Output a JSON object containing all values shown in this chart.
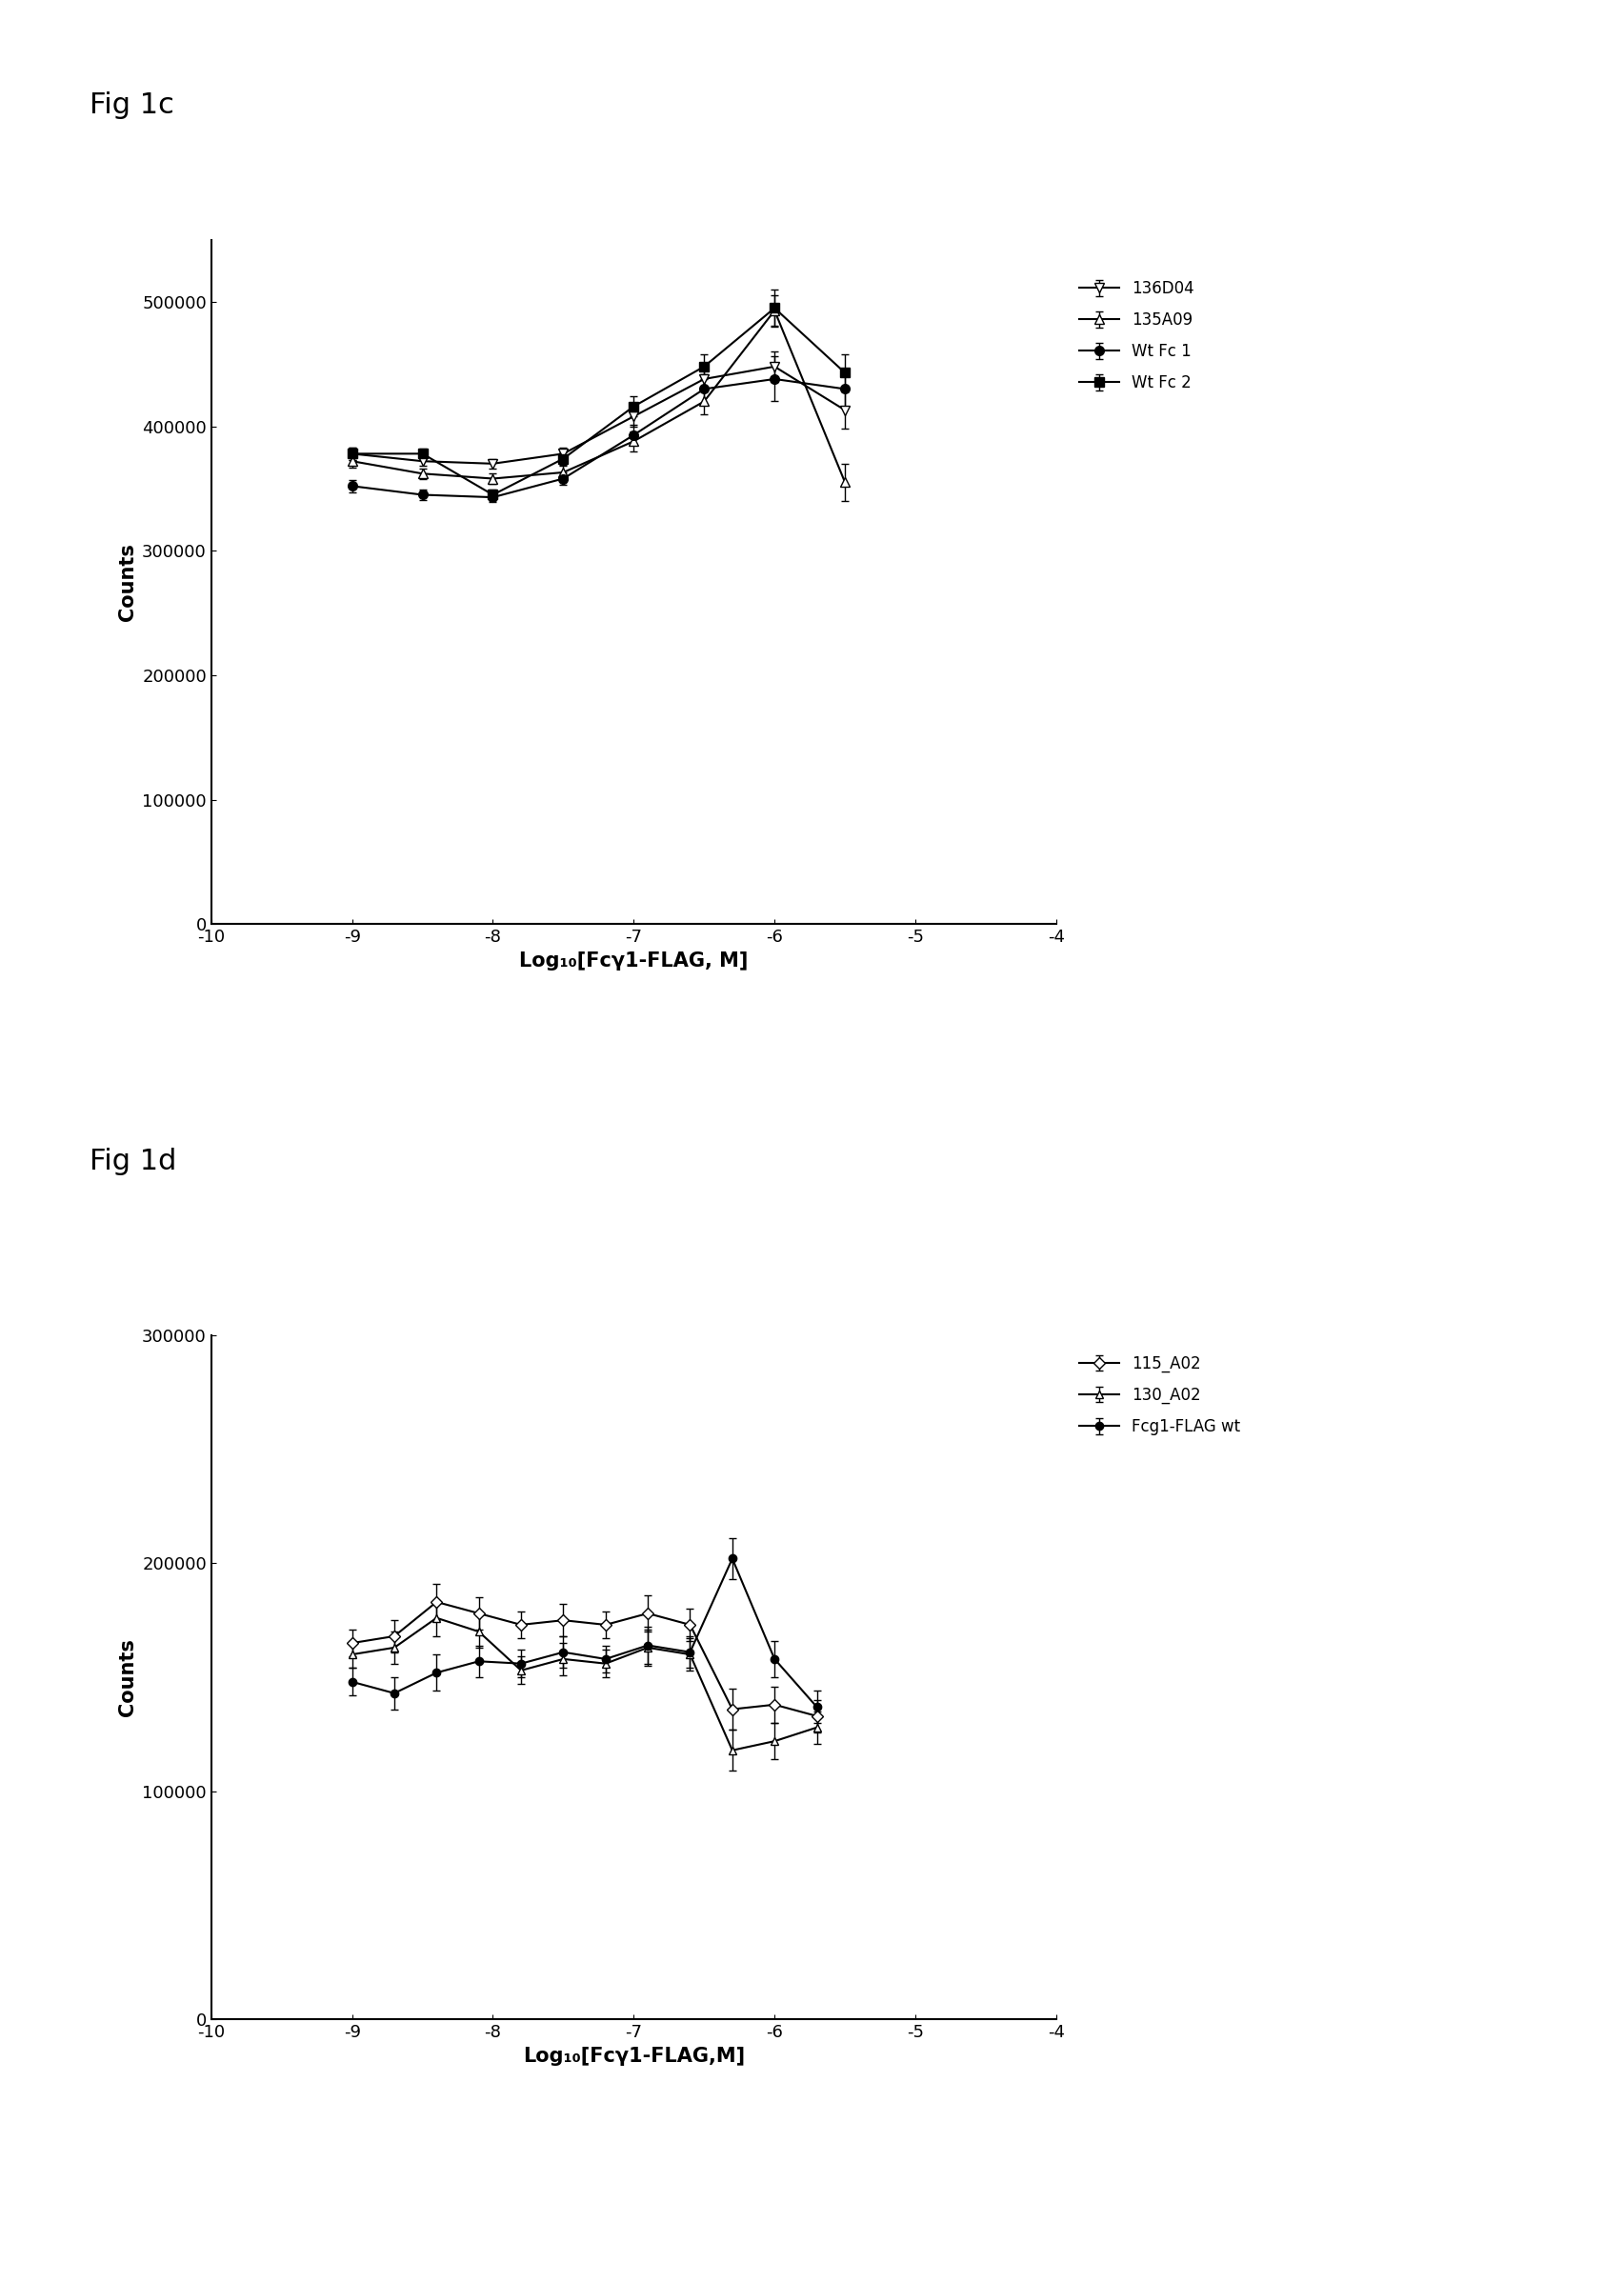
{
  "fig1c": {
    "title": "Fig 1c",
    "xlabel": "Log₁₀[Fcγ1-FLAG, M]",
    "ylabel": "Counts",
    "xlim": [
      -10,
      -4
    ],
    "ylim": [
      0,
      550000
    ],
    "xticks": [
      -10,
      -9,
      -8,
      -7,
      -6,
      -5,
      -4
    ],
    "yticks": [
      0,
      100000,
      200000,
      300000,
      400000,
      500000
    ],
    "series": [
      {
        "label": "136D04",
        "marker": "v",
        "markersize": 7,
        "color": "#000000",
        "fillstyle": "none",
        "x": [
          -9.0,
          -8.5,
          -8.0,
          -7.5,
          -7.0,
          -6.5,
          -6.0,
          -5.5
        ],
        "y": [
          378000,
          372000,
          370000,
          378000,
          408000,
          438000,
          448000,
          413000
        ],
        "yerr": [
          5000,
          4000,
          4000,
          5000,
          8000,
          10000,
          12000,
          15000
        ]
      },
      {
        "label": "135A09",
        "marker": "^",
        "markersize": 7,
        "color": "#000000",
        "fillstyle": "none",
        "x": [
          -9.0,
          -8.5,
          -8.0,
          -7.5,
          -7.0,
          -6.5,
          -6.0,
          -5.5
        ],
        "y": [
          372000,
          362000,
          358000,
          363000,
          388000,
          420000,
          493000,
          355000
        ],
        "yerr": [
          5000,
          4000,
          4000,
          5000,
          8000,
          10000,
          12000,
          15000
        ]
      },
      {
        "label": "Wt Fc 1",
        "marker": "o",
        "markersize": 7,
        "color": "#000000",
        "fillstyle": "full",
        "x": [
          -9.0,
          -8.5,
          -8.0,
          -7.5,
          -7.0,
          -6.5,
          -6.0,
          -5.5
        ],
        "y": [
          352000,
          345000,
          343000,
          358000,
          393000,
          430000,
          438000,
          430000
        ],
        "yerr": [
          5000,
          4000,
          4000,
          5000,
          8000,
          12000,
          18000,
          15000
        ]
      },
      {
        "label": "Wt Fc 2",
        "marker": "s",
        "markersize": 7,
        "color": "#000000",
        "fillstyle": "full",
        "x": [
          -9.0,
          -8.5,
          -8.0,
          -7.5,
          -7.0,
          -6.5,
          -6.0,
          -5.5
        ],
        "y": [
          378000,
          378000,
          345000,
          374000,
          416000,
          448000,
          495000,
          443000
        ],
        "yerr": [
          5000,
          4000,
          4000,
          5000,
          8000,
          10000,
          15000,
          15000
        ]
      }
    ]
  },
  "fig1d": {
    "title": "Fig 1d",
    "xlabel": "Log₁₀[Fcγ1-FLAG,M]",
    "ylabel": "Counts",
    "xlim": [
      -10,
      -4
    ],
    "ylim": [
      0,
      300000
    ],
    "xticks": [
      -10,
      -9,
      -8,
      -7,
      -6,
      -5,
      -4
    ],
    "yticks": [
      0,
      100000,
      200000,
      300000
    ],
    "series": [
      {
        "label": "115_A02",
        "marker": "D",
        "markersize": 6,
        "color": "#000000",
        "fillstyle": "none",
        "x": [
          -9.0,
          -8.7,
          -8.4,
          -8.1,
          -7.8,
          -7.5,
          -7.2,
          -6.9,
          -6.6,
          -6.3,
          -6.0,
          -5.7
        ],
        "y": [
          165000,
          168000,
          183000,
          178000,
          173000,
          175000,
          173000,
          178000,
          173000,
          136000,
          138000,
          133000
        ],
        "yerr": [
          6000,
          7000,
          8000,
          7000,
          6000,
          7000,
          6000,
          8000,
          7000,
          9000,
          8000,
          7000
        ]
      },
      {
        "label": "130_A02",
        "marker": "^",
        "markersize": 6,
        "color": "#000000",
        "fillstyle": "none",
        "x": [
          -9.0,
          -8.7,
          -8.4,
          -8.1,
          -7.8,
          -7.5,
          -7.2,
          -6.9,
          -6.6,
          -6.3,
          -6.0,
          -5.7
        ],
        "y": [
          160000,
          163000,
          176000,
          170000,
          153000,
          158000,
          156000,
          163000,
          160000,
          118000,
          122000,
          128000
        ],
        "yerr": [
          6000,
          7000,
          8000,
          7000,
          6000,
          7000,
          6000,
          8000,
          7000,
          9000,
          8000,
          7000
        ]
      },
      {
        "label": "Fcg1-FLAG wt",
        "marker": "o",
        "markersize": 6,
        "color": "#000000",
        "fillstyle": "full",
        "x": [
          -9.0,
          -8.7,
          -8.4,
          -8.1,
          -7.8,
          -7.5,
          -7.2,
          -6.9,
          -6.6,
          -6.3,
          -6.0,
          -5.7
        ],
        "y": [
          148000,
          143000,
          152000,
          157000,
          156000,
          161000,
          158000,
          164000,
          161000,
          202000,
          158000,
          137000
        ],
        "yerr": [
          6000,
          7000,
          8000,
          7000,
          6000,
          7000,
          6000,
          8000,
          7000,
          9000,
          8000,
          7000
        ]
      }
    ]
  },
  "background_color": "#ffffff",
  "font_size": 13,
  "label_fontsize": 15,
  "title_fontsize": 22,
  "legend_fontsize": 12
}
